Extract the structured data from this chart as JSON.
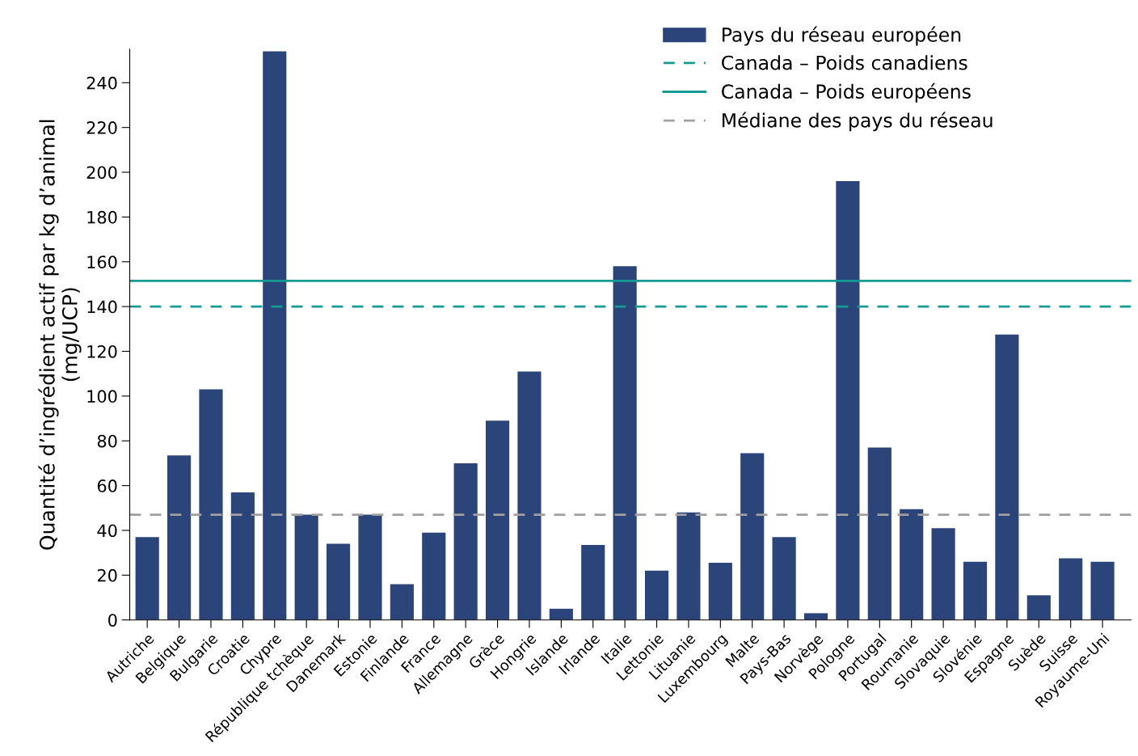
{
  "chart_data": {
    "type": "bar",
    "ylabel": "Quantité d’ingrédient actif par kg d’animal\n(mg/UCP)",
    "categories": [
      "Autriche",
      "Belgique",
      "Bulgarie",
      "Croatie",
      "Chypre",
      "République tchèque",
      "Danemark",
      "Estonie",
      "Finlande",
      "France",
      "Allemagne",
      "Grèce",
      "Hongrie",
      "Islande",
      "Irlande",
      "Italie",
      "Lettonie",
      "Lituanie",
      "Luxembourg",
      "Malte",
      "Pays-Bas",
      "Norvège",
      "Pologne",
      "Portugal",
      "Roumanie",
      "Slovaquie",
      "Slovénie",
      "Espagne",
      "Suède",
      "Suisse",
      "Royaume-Uni"
    ],
    "series": [
      {
        "name": "Pays du réseau européen",
        "color": "#2b4479",
        "values": [
          37,
          73.5,
          103,
          57,
          254,
          47,
          34,
          47,
          16,
          39,
          70,
          89,
          111,
          5,
          33.5,
          158,
          22,
          48,
          25.5,
          74.5,
          37,
          3,
          196,
          77,
          49.5,
          41,
          26,
          127.5,
          11,
          27.5,
          26
        ]
      }
    ],
    "ylim": [
      0,
      255
    ],
    "yticks": [
      0,
      20,
      40,
      60,
      80,
      100,
      120,
      140,
      160,
      180,
      200,
      220,
      240
    ],
    "ref_lines": [
      {
        "axis": "y",
        "value": 140,
        "label": "Canada – Poids canadiens",
        "color": "#159a94",
        "line_style": "dashed"
      },
      {
        "axis": "y",
        "value": 151.5,
        "label": "Canada – Poids européens",
        "color": "#159a94",
        "line_style": "solid"
      },
      {
        "axis": "y",
        "value": 47,
        "label": "Médiane des pays du réseau",
        "color": "#a0a0a0",
        "line_style": "dashed"
      }
    ],
    "legend": "top right",
    "grid": false
  }
}
